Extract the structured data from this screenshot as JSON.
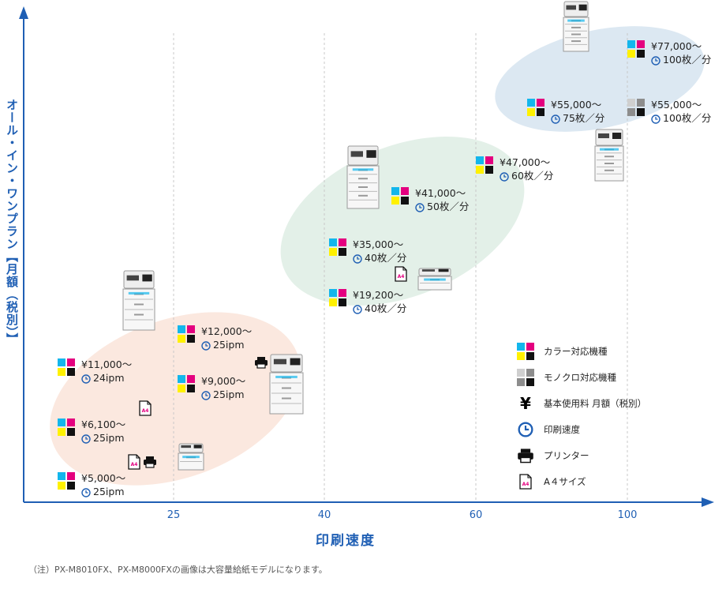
{
  "colors": {
    "axis": "#1f5fb4",
    "cyan": "#13b6ec",
    "magenta": "#e4007f",
    "yellow": "#fff100",
    "black": "#111111",
    "mono_light": "#cfcfcf",
    "mono_mid": "#8d8d8d",
    "ellipse_low": "#fbe8df",
    "ellipse_mid": "#e3f0e8",
    "ellipse_high": "#dce8f2",
    "grid": "#c8c8c8"
  },
  "chart_data": {
    "type": "scatter",
    "title": "",
    "xlabel": "印刷速度",
    "ylabel": "オール・イン・ワンプラン【月額（税別）】",
    "x_ticks": [
      25,
      40,
      60,
      100
    ],
    "grid": "vertical dashed",
    "legend_placement": "bottom-right",
    "points": [
      {
        "price": "¥77,000〜",
        "speed": "100枚／分",
        "kind": "color"
      },
      {
        "price": "¥55,000〜",
        "speed": "75枚／分",
        "kind": "color"
      },
      {
        "price": "¥55,000〜",
        "speed": "100枚／分",
        "kind": "mono"
      },
      {
        "price": "¥47,000〜",
        "speed": "60枚／分",
        "kind": "color"
      },
      {
        "price": "¥41,000〜",
        "speed": "50枚／分",
        "kind": "color"
      },
      {
        "price": "¥35,000〜",
        "speed": "40枚／分",
        "kind": "color"
      },
      {
        "price": "¥19,200〜",
        "speed": "40枚／分",
        "kind": "color"
      },
      {
        "price": "¥12,000〜",
        "speed": "25ipm",
        "kind": "color"
      },
      {
        "price": "¥11,000〜",
        "speed": "24ipm",
        "kind": "color"
      },
      {
        "price": "¥9,000〜",
        "speed": "25ipm",
        "kind": "color"
      },
      {
        "price": "¥6,100〜",
        "speed": "25ipm",
        "kind": "color"
      },
      {
        "price": "¥5,000〜",
        "speed": "25ipm",
        "kind": "color"
      }
    ],
    "legend": [
      {
        "icon": "color-swatch-icon",
        "label": "カラー対応機種"
      },
      {
        "icon": "mono-swatch-icon",
        "label": "モノクロ対応機種"
      },
      {
        "icon": "yen-icon",
        "label": "基本使用料 月額（税別）"
      },
      {
        "icon": "clock-icon",
        "label": "印刷速度"
      },
      {
        "icon": "printer-icon",
        "label": "プリンター"
      },
      {
        "icon": "a4-icon",
        "label": "A４サイズ"
      }
    ]
  },
  "yen_glyph": "¥",
  "note": "（注）PX-M8010FX、PX-M8000FXの画像は大容量給紙モデルになります。"
}
